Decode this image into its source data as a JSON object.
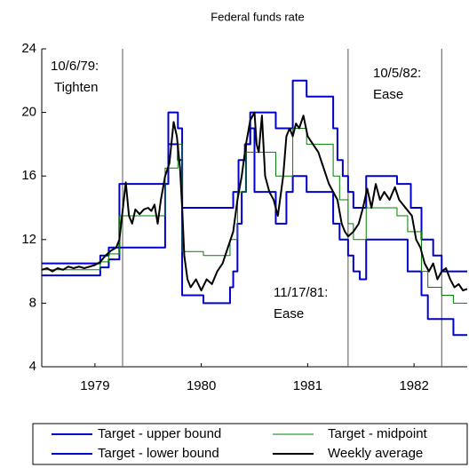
{
  "chart_data": {
    "type": "line",
    "title": "Federal funds rate",
    "xlim": [
      1979.0,
      1983.0
    ],
    "xticks": [
      {
        "value": 1979.5,
        "label": "1979"
      },
      {
        "value": 1980.5,
        "label": "1980"
      },
      {
        "value": 1981.5,
        "label": "1981"
      },
      {
        "value": 1982.5,
        "label": "1982"
      }
    ],
    "ylim": [
      4,
      24
    ],
    "yticks": [
      4,
      8,
      12,
      16,
      20,
      24
    ],
    "grid": false,
    "legend": "bottom",
    "annotations": [
      {
        "x": 1979.76,
        "lines": [
          "10/6/79:",
          "Tighten"
        ]
      },
      {
        "x": 1981.88,
        "lines": [
          "11/17/81:",
          "Ease"
        ]
      },
      {
        "x": 1982.76,
        "lines": [
          "10/5/82:",
          "Ease"
        ]
      }
    ],
    "series": [
      {
        "name": "Target - upper bound",
        "color": "#0000cc",
        "step": true,
        "x": [
          1979.0,
          1979.55,
          1979.63,
          1979.73,
          1980.19,
          1980.28,
          1980.32,
          1980.8,
          1980.85,
          1980.91,
          1980.96,
          1981.2,
          1981.36,
          1981.49,
          1981.74,
          1981.78,
          1981.83,
          1981.88,
          1981.93,
          1982.05,
          1982.34,
          1982.47,
          1982.57,
          1982.68,
          1982.76,
          1983.0
        ],
        "values": [
          10.5,
          11,
          11.5,
          15.5,
          20,
          19,
          14,
          15,
          17,
          18,
          20,
          19,
          22,
          21,
          19,
          17,
          16,
          15,
          14,
          16,
          15.5,
          14,
          12,
          11,
          10,
          10
        ]
      },
      {
        "name": "Target - midpoint",
        "color": "#008000",
        "step": true,
        "x": [
          1979.0,
          1979.55,
          1979.63,
          1979.73,
          1980.16,
          1980.28,
          1980.32,
          1980.52,
          1980.77,
          1980.84,
          1980.92,
          1981.2,
          1981.36,
          1981.49,
          1981.74,
          1981.8,
          1981.88,
          1981.93,
          1982.05,
          1982.34,
          1982.44,
          1982.57,
          1982.63,
          1982.76,
          1982.87,
          1983.0
        ],
        "values": [
          10.1,
          10.6,
          11.1,
          13.5,
          16.5,
          18,
          11.25,
          11,
          12,
          15,
          17.5,
          16,
          19,
          18,
          16,
          14.5,
          13,
          12,
          14,
          13.5,
          12.5,
          10,
          9,
          8.5,
          8,
          8
        ]
      },
      {
        "name": "Target - lower bound",
        "color": "#0000cc",
        "step": true,
        "x": [
          1979.0,
          1979.55,
          1979.63,
          1979.73,
          1980.16,
          1980.19,
          1980.28,
          1980.32,
          1980.52,
          1980.77,
          1980.8,
          1980.84,
          1980.88,
          1980.92,
          1980.96,
          1981.0,
          1981.2,
          1981.3,
          1981.36,
          1981.49,
          1981.74,
          1981.8,
          1981.88,
          1981.93,
          1981.99,
          1982.05,
          1982.44,
          1982.57,
          1982.63,
          1982.87,
          1983.0
        ],
        "values": [
          9.75,
          10.25,
          10.75,
          11.5,
          15.5,
          18,
          17,
          8.5,
          8,
          9,
          10,
          13,
          15,
          18,
          19,
          15,
          13,
          15,
          16,
          15,
          13,
          12,
          11,
          10,
          9.5,
          12,
          10,
          8.5,
          7,
          6,
          6
        ]
      },
      {
        "name": "Weekly average",
        "color": "#000000",
        "step": false,
        "x": [
          1979.0,
          1979.05,
          1979.1,
          1979.15,
          1979.2,
          1979.25,
          1979.3,
          1979.35,
          1979.4,
          1979.45,
          1979.5,
          1979.55,
          1979.6,
          1979.65,
          1979.7,
          1979.73,
          1979.76,
          1979.79,
          1979.82,
          1979.85,
          1979.88,
          1979.92,
          1979.96,
          1980.0,
          1980.03,
          1980.06,
          1980.09,
          1980.12,
          1980.16,
          1980.2,
          1980.24,
          1980.27,
          1980.3,
          1980.32,
          1980.34,
          1980.37,
          1980.4,
          1980.45,
          1980.5,
          1980.55,
          1980.6,
          1980.65,
          1980.7,
          1980.75,
          1980.8,
          1980.84,
          1980.88,
          1980.92,
          1980.96,
          1981.0,
          1981.02,
          1981.04,
          1981.07,
          1981.1,
          1981.14,
          1981.18,
          1981.22,
          1981.27,
          1981.3,
          1981.33,
          1981.36,
          1981.39,
          1981.42,
          1981.46,
          1981.5,
          1981.55,
          1981.6,
          1981.65,
          1981.7,
          1981.74,
          1981.78,
          1981.82,
          1981.85,
          1981.88,
          1981.93,
          1981.98,
          1982.02,
          1982.06,
          1982.1,
          1982.14,
          1982.18,
          1982.22,
          1982.27,
          1982.32,
          1982.36,
          1982.42,
          1982.48,
          1982.52,
          1982.56,
          1982.6,
          1982.64,
          1982.68,
          1982.72,
          1982.76,
          1982.8,
          1982.84,
          1982.88,
          1982.92,
          1982.96,
          1983.0
        ],
        "values": [
          10.1,
          10.2,
          10.0,
          10.2,
          10.1,
          10.3,
          10.2,
          10.3,
          10.2,
          10.3,
          10.4,
          10.6,
          11.0,
          11.3,
          11.5,
          12.0,
          13.8,
          15.6,
          13.5,
          13.0,
          13.9,
          13.6,
          13.9,
          14.0,
          13.8,
          14.2,
          13.0,
          14.5,
          16.0,
          16.8,
          19.4,
          18.5,
          16.5,
          14.0,
          11.0,
          9.5,
          9.0,
          9.5,
          8.8,
          9.5,
          9.2,
          10.0,
          10.5,
          11.5,
          12.5,
          14.5,
          16.0,
          18.0,
          19.5,
          20.0,
          18.0,
          17.5,
          19.8,
          16.0,
          15.0,
          14.5,
          13.5,
          16.0,
          18.5,
          19.0,
          18.5,
          19.3,
          19.0,
          19.8,
          18.5,
          18.0,
          17.5,
          16.5,
          15.5,
          15.0,
          14.5,
          13.0,
          12.5,
          12.2,
          12.5,
          13.0,
          14.0,
          15.2,
          14.0,
          15.5,
          14.5,
          15.0,
          14.5,
          15.3,
          14.5,
          14.0,
          13.5,
          12.0,
          11.5,
          10.5,
          10.0,
          10.5,
          9.5,
          10.0,
          10.2,
          9.5,
          9.0,
          9.2,
          8.8,
          8.9
        ]
      }
    ]
  }
}
